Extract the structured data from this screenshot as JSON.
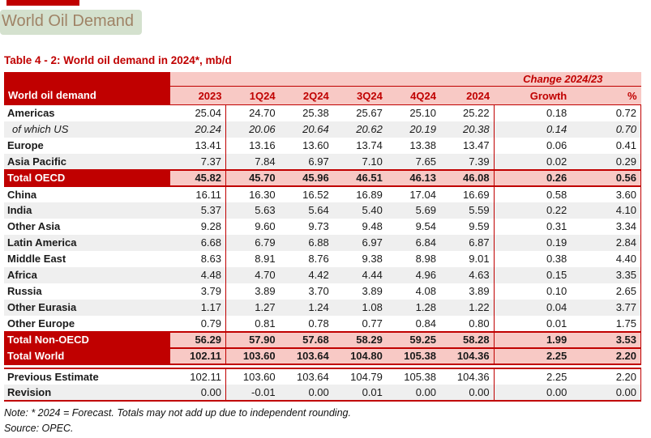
{
  "page": {
    "title": "World Oil Demand",
    "table_title": "Table 4 - 2: World oil demand in 2024*, mb/d",
    "note": "Note: * 2024 = Forecast. Totals may not add up due to independent rounding.",
    "source": "Source: OPEC."
  },
  "colors": {
    "dark_red": "#C00000",
    "header_pink": "#F8C9C5",
    "stripe_gray": "#EFEFEF",
    "title_text": "#9F8366",
    "title_highlight": "#D4E1CE"
  },
  "table": {
    "corner_label": "World oil demand",
    "change_header": "Change 2024/23",
    "columns": [
      "2023",
      "1Q24",
      "2Q24",
      "3Q24",
      "4Q24",
      "2024",
      "Growth",
      "%"
    ],
    "rows": [
      {
        "label": "Americas",
        "type": "data",
        "values": [
          "25.04",
          "24.70",
          "25.38",
          "25.67",
          "25.10",
          "25.22",
          "0.18",
          "0.72"
        ]
      },
      {
        "label": "of which US",
        "type": "sub",
        "values": [
          "20.24",
          "20.06",
          "20.64",
          "20.62",
          "20.19",
          "20.38",
          "0.14",
          "0.70"
        ]
      },
      {
        "label": "Europe",
        "type": "data",
        "values": [
          "13.41",
          "13.16",
          "13.60",
          "13.74",
          "13.38",
          "13.47",
          "0.06",
          "0.41"
        ]
      },
      {
        "label": "Asia Pacific",
        "type": "data",
        "values": [
          "7.37",
          "7.84",
          "6.97",
          "7.10",
          "7.65",
          "7.39",
          "0.02",
          "0.29"
        ]
      },
      {
        "label": "Total OECD",
        "type": "total",
        "values": [
          "45.82",
          "45.70",
          "45.96",
          "46.51",
          "46.13",
          "46.08",
          "0.26",
          "0.56"
        ]
      },
      {
        "label": "China",
        "type": "data",
        "values": [
          "16.11",
          "16.30",
          "16.52",
          "16.89",
          "17.04",
          "16.69",
          "0.58",
          "3.60"
        ]
      },
      {
        "label": "India",
        "type": "data",
        "values": [
          "5.37",
          "5.63",
          "5.64",
          "5.40",
          "5.69",
          "5.59",
          "0.22",
          "4.10"
        ]
      },
      {
        "label": "Other Asia",
        "type": "data",
        "values": [
          "9.28",
          "9.60",
          "9.73",
          "9.48",
          "9.54",
          "9.59",
          "0.31",
          "3.34"
        ]
      },
      {
        "label": "Latin America",
        "type": "data",
        "values": [
          "6.68",
          "6.79",
          "6.88",
          "6.97",
          "6.84",
          "6.87",
          "0.19",
          "2.84"
        ]
      },
      {
        "label": "Middle East",
        "type": "data",
        "values": [
          "8.63",
          "8.91",
          "8.76",
          "9.38",
          "8.98",
          "9.01",
          "0.38",
          "4.40"
        ]
      },
      {
        "label": "Africa",
        "type": "data",
        "values": [
          "4.48",
          "4.70",
          "4.42",
          "4.44",
          "4.96",
          "4.63",
          "0.15",
          "3.35"
        ]
      },
      {
        "label": "Russia",
        "type": "data",
        "values": [
          "3.79",
          "3.89",
          "3.70",
          "3.89",
          "4.08",
          "3.89",
          "0.10",
          "2.65"
        ]
      },
      {
        "label": "Other Eurasia",
        "type": "data",
        "values": [
          "1.17",
          "1.27",
          "1.24",
          "1.08",
          "1.28",
          "1.22",
          "0.04",
          "3.77"
        ]
      },
      {
        "label": "Other Europe",
        "type": "data",
        "values": [
          "0.79",
          "0.81",
          "0.78",
          "0.77",
          "0.84",
          "0.80",
          "0.01",
          "1.75"
        ]
      },
      {
        "label": "Total Non-OECD",
        "type": "total",
        "values": [
          "56.29",
          "57.90",
          "57.68",
          "58.29",
          "59.25",
          "58.28",
          "1.99",
          "3.53"
        ]
      },
      {
        "label": "Total World",
        "type": "total",
        "values": [
          "102.11",
          "103.60",
          "103.64",
          "104.80",
          "105.38",
          "104.36",
          "2.25",
          "2.20"
        ]
      }
    ],
    "bottom_rows": [
      {
        "label": "Previous Estimate",
        "type": "est",
        "values": [
          "102.11",
          "103.60",
          "103.64",
          "104.79",
          "105.38",
          "104.36",
          "2.25",
          "2.20"
        ]
      },
      {
        "label": "Revision",
        "type": "est",
        "values": [
          "0.00",
          "-0.01",
          "0.00",
          "0.01",
          "0.00",
          "0.00",
          "0.00",
          "0.00"
        ]
      }
    ]
  }
}
